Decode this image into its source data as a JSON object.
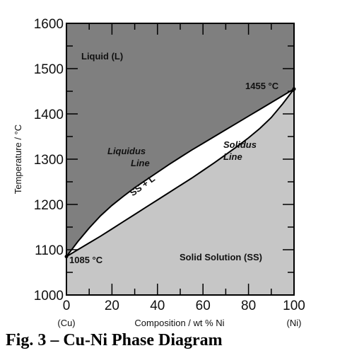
{
  "chart_data": {
    "type": "area",
    "caption": "Fig. 3 – Cu-Ni Phase Diagram",
    "xlabel": "Composition / wt % Ni",
    "ylabel": "Temperature / °C",
    "xlim": [
      0,
      100
    ],
    "ylim": [
      1000,
      1600
    ],
    "x_ticks": [
      "0",
      "20",
      "40",
      "60",
      "80",
      "100"
    ],
    "x_tick_values": [
      0,
      20,
      40,
      60,
      80,
      100
    ],
    "x_end_labels": {
      "left": "(Cu)",
      "right": "(Ni)"
    },
    "y_ticks": [
      "1000",
      "1100",
      "1200",
      "1300",
      "1400",
      "1500",
      "1600"
    ],
    "y_tick_values": [
      1000,
      1100,
      1200,
      1300,
      1400,
      1500,
      1600
    ],
    "minor_x_step": 10,
    "minor_y_step": 50,
    "grid": false,
    "series": [
      {
        "name": "Liquidus Line",
        "x": [
          0,
          5,
          10,
          15,
          20,
          25,
          30,
          35,
          40,
          45,
          50,
          55,
          60,
          65,
          70,
          75,
          80,
          85,
          90,
          95,
          100
        ],
        "y": [
          1085,
          1118,
          1148,
          1175,
          1198,
          1218,
          1237,
          1254,
          1271,
          1288,
          1304,
          1320,
          1335,
          1350,
          1365,
          1380,
          1395,
          1410,
          1425,
          1440,
          1455
        ]
      },
      {
        "name": "Solidus Line",
        "x": [
          0,
          5,
          10,
          15,
          20,
          25,
          30,
          35,
          40,
          45,
          50,
          55,
          60,
          65,
          70,
          75,
          80,
          85,
          90,
          95,
          100
        ],
        "y": [
          1085,
          1100,
          1115,
          1130,
          1146,
          1162,
          1178,
          1194,
          1210,
          1226,
          1242,
          1258,
          1275,
          1292,
          1310,
          1328,
          1347,
          1368,
          1392,
          1422,
          1455
        ]
      }
    ],
    "regions": {
      "liquid": "Liquid (L)",
      "two_phase": "SS + L",
      "solid": "Solid Solution (SS)"
    },
    "annotations": {
      "cu_melting": "1085 °C",
      "ni_melting": "1455 °C",
      "liquidus_label": [
        "Liquidus",
        "Line"
      ],
      "solidus_label": [
        "Solidus",
        "Line"
      ]
    },
    "colors": {
      "liquid": "#7f7f7f",
      "two_phase": "#ffffff",
      "solid": "#c6c6c6",
      "lines": "#000000"
    }
  }
}
